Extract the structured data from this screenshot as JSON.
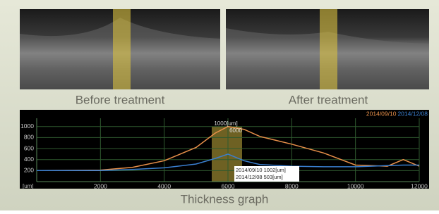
{
  "images": [
    {
      "label": "Before treatment"
    },
    {
      "label": "After treatment"
    }
  ],
  "chart_data": {
    "type": "line",
    "title": "Thickness graph",
    "x": [
      0,
      2000,
      3000,
      4000,
      5000,
      5600,
      6000,
      6500,
      7000,
      8000,
      9000,
      10000,
      11000,
      11500,
      12000
    ],
    "series": [
      {
        "name": "2014/09/10",
        "color": "#e8904a",
        "values": [
          200,
          210,
          260,
          380,
          620,
          880,
          1000,
          950,
          820,
          680,
          520,
          300,
          280,
          400,
          280
        ]
      },
      {
        "name": "2014/12/08",
        "color": "#3a7fd0",
        "values": [
          200,
          200,
          220,
          250,
          320,
          420,
          500,
          380,
          310,
          280,
          270,
          270,
          290,
          300,
          300
        ]
      }
    ],
    "xlim": [
      0,
      12000
    ],
    "xticks": [
      2000,
      4000,
      6000,
      8000,
      10000,
      12000
    ],
    "x_unit": "[um]",
    "ylim": [
      0,
      1150
    ],
    "yticks": [
      200,
      400,
      600,
      800,
      1000
    ],
    "grid": true,
    "annotations": [
      "1000[um]",
      "6000",
      "2014/09/10 1002[um]",
      "2014/12/08 503[um]"
    ]
  }
}
